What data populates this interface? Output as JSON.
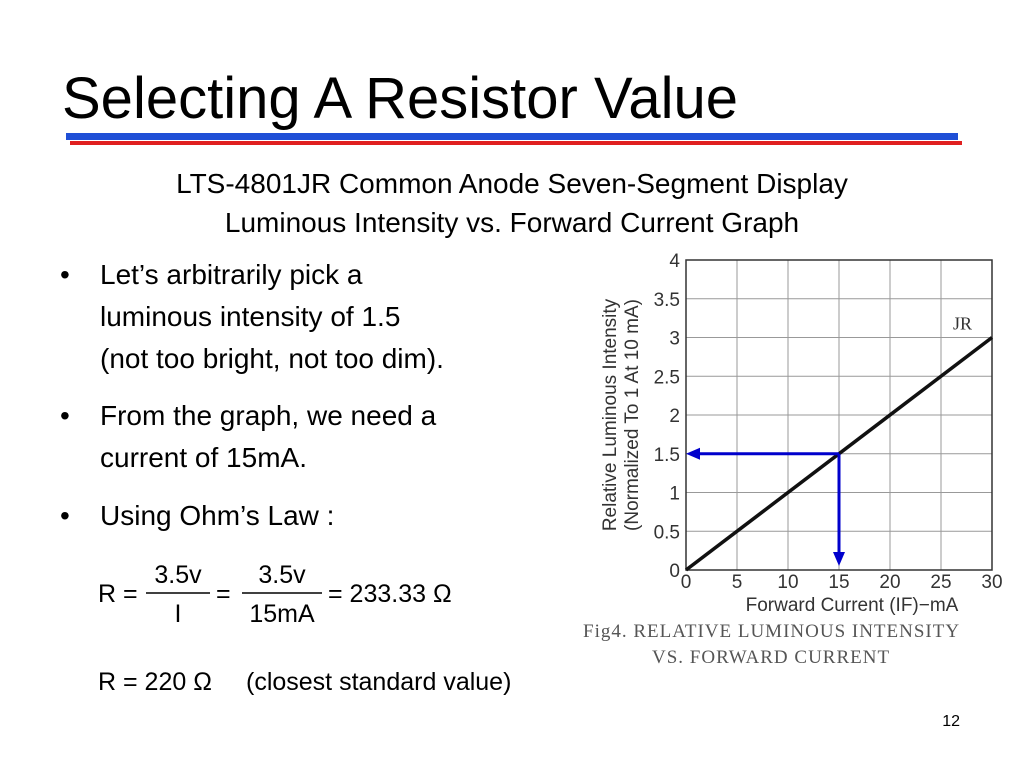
{
  "title": "Selecting A Resistor Value",
  "subtitle": [
    "LTS-4801JR Common Anode Seven-Segment Display",
    "Luminous Intensity vs. Forward Current Graph"
  ],
  "bullets": [
    [
      "Let’s arbitrarily pick a",
      "luminous intensity of 1.5",
      "(not too bright, not too dim)."
    ],
    [
      "From the graph, we need a",
      "current of 15mA."
    ],
    [
      "Using Ohm’s Law :"
    ]
  ],
  "equation": {
    "lhs": "R =",
    "fraction1": {
      "numerator": "3.5v",
      "denominator": "I"
    },
    "equals": "=",
    "fraction2": {
      "numerator": "3.5v",
      "denominator": "15mA"
    },
    "result": "= 233.33 Ω"
  },
  "standard": {
    "value": "R = 220 Ω",
    "note": "(closest standard value)"
  },
  "slide_number": "12",
  "chart_data": {
    "type": "line",
    "x": [
      0,
      30
    ],
    "series": [
      {
        "name": "JR",
        "color": "#111111",
        "values": [
          0,
          3
        ]
      }
    ],
    "xlim": [
      0,
      30
    ],
    "xticks": [
      0,
      5,
      10,
      15,
      20,
      25,
      30
    ],
    "ylim": [
      0,
      4
    ],
    "yticks": [
      0,
      0.5,
      1,
      1.5,
      2,
      2.5,
      3,
      3.5,
      4
    ],
    "grid": true,
    "x_label": "Forward Current (IF)−mA",
    "y_label": [
      "Relative Luminous Intensity",
      "(Normalized To 1 At 10 mA)"
    ],
    "caption": [
      "Fig4.  RELATIVE LUMINOUS INTENSITY",
      "VS. FORWARD CURRENT"
    ],
    "marker": {
      "x": 15,
      "y": 1.5,
      "color": "#0000cc"
    }
  }
}
